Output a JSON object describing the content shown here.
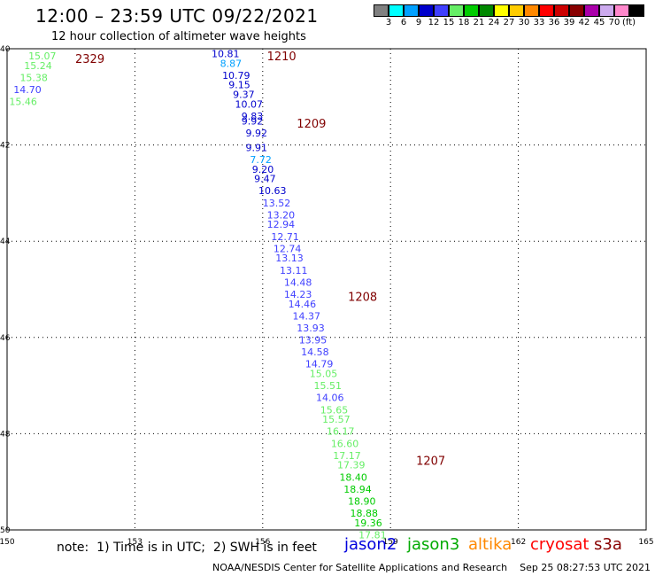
{
  "title": "12:00 – 23:59 UTC 09/22/2021",
  "subtitle": "12 hour collection of altimeter wave heights",
  "scale": {
    "colors": [
      "#808080",
      "#00ffff",
      "#00a0ff",
      "#0000cc",
      "#4040ff",
      "#66ee66",
      "#00cc00",
      "#008800",
      "#ffff00",
      "#ffcc00",
      "#ff8800",
      "#ff0000",
      "#cc0000",
      "#880000",
      "#aa00aa",
      "#ccaaee",
      "#ff88cc",
      "#000000"
    ],
    "labels": [
      "3",
      "6",
      "9",
      "12",
      "15",
      "18",
      "21",
      "24",
      "27",
      "30",
      "33",
      "36",
      "39",
      "42",
      "45",
      "70"
    ],
    "unit": "(ft)"
  },
  "axes": {
    "lat_ticks": [
      "40",
      "42",
      "44",
      "46",
      "48",
      "50"
    ],
    "lon_ticks": [
      "150",
      "153",
      "156",
      "159",
      "162",
      "165"
    ]
  },
  "chart_data": {
    "type": "scatter",
    "x_range": [
      150,
      165
    ],
    "y_range": [
      40,
      50
    ],
    "passes": [
      {
        "time": "2329",
        "lon": 151.6,
        "lat": 40.2,
        "color": "#800000"
      },
      {
        "time": "1210",
        "lon": 156.1,
        "lat": 40.15,
        "color": "#800000"
      },
      {
        "time": "1209",
        "lon": 156.8,
        "lat": 41.55,
        "color": "#800000"
      },
      {
        "time": "1208",
        "lon": 158.0,
        "lat": 45.15,
        "color": "#800000"
      },
      {
        "time": "1207",
        "lon": 159.6,
        "lat": 48.55,
        "color": "#800000"
      }
    ],
    "track_2329": [
      {
        "lon": 150.5,
        "lat": 40.15,
        "swh": "15.07"
      },
      {
        "lon": 150.4,
        "lat": 40.35,
        "swh": "15.24"
      },
      {
        "lon": 150.3,
        "lat": 40.6,
        "swh": "15.38"
      },
      {
        "lon": 150.15,
        "lat": 40.85,
        "swh": "14.70"
      },
      {
        "lon": 150.05,
        "lat": 41.1,
        "swh": "15.46"
      }
    ],
    "track_main": [
      {
        "lon": 154.8,
        "lat": 40.1,
        "swh": "10.81"
      },
      {
        "lon": 155.0,
        "lat": 40.3,
        "swh": "8.87"
      },
      {
        "lon": 155.05,
        "lat": 40.55,
        "swh": "10.79"
      },
      {
        "lon": 155.2,
        "lat": 40.75,
        "swh": "9.15"
      },
      {
        "lon": 155.3,
        "lat": 40.95,
        "swh": "9.37"
      },
      {
        "lon": 155.35,
        "lat": 41.15,
        "swh": "10.07"
      },
      {
        "lon": 155.5,
        "lat": 41.4,
        "swh": "9.83"
      },
      {
        "lon": 155.5,
        "lat": 41.5,
        "swh": "9.92"
      },
      {
        "lon": 155.6,
        "lat": 41.75,
        "swh": "9.92"
      },
      {
        "lon": 155.6,
        "lat": 42.05,
        "swh": "9.91"
      },
      {
        "lon": 155.7,
        "lat": 42.3,
        "swh": "7.72"
      },
      {
        "lon": 155.75,
        "lat": 42.5,
        "swh": "9.20"
      },
      {
        "lon": 155.8,
        "lat": 42.7,
        "swh": "9.47"
      },
      {
        "lon": 155.9,
        "lat": 42.95,
        "swh": "10.63"
      },
      {
        "lon": 156.0,
        "lat": 43.2,
        "swh": "13.52"
      },
      {
        "lon": 156.1,
        "lat": 43.45,
        "swh": "13.20"
      },
      {
        "lon": 156.1,
        "lat": 43.65,
        "swh": "12.94"
      },
      {
        "lon": 156.2,
        "lat": 43.9,
        "swh": "12.71"
      },
      {
        "lon": 156.25,
        "lat": 44.15,
        "swh": "12.74"
      },
      {
        "lon": 156.3,
        "lat": 44.35,
        "swh": "13.13"
      },
      {
        "lon": 156.4,
        "lat": 44.6,
        "swh": "13.11"
      },
      {
        "lon": 156.5,
        "lat": 44.85,
        "swh": "14.48"
      },
      {
        "lon": 156.5,
        "lat": 45.1,
        "swh": "14.23"
      },
      {
        "lon": 156.6,
        "lat": 45.3,
        "swh": "14.46"
      },
      {
        "lon": 156.7,
        "lat": 45.55,
        "swh": "14.37"
      },
      {
        "lon": 156.8,
        "lat": 45.8,
        "swh": "13.93"
      },
      {
        "lon": 156.85,
        "lat": 46.05,
        "swh": "13.95"
      },
      {
        "lon": 156.9,
        "lat": 46.3,
        "swh": "14.58"
      },
      {
        "lon": 157.0,
        "lat": 46.55,
        "swh": "14.79"
      },
      {
        "lon": 157.1,
        "lat": 46.75,
        "swh": "15.05"
      },
      {
        "lon": 157.2,
        "lat": 47.0,
        "swh": "15.51"
      },
      {
        "lon": 157.25,
        "lat": 47.25,
        "swh": "14.06"
      },
      {
        "lon": 157.35,
        "lat": 47.5,
        "swh": "15.65"
      },
      {
        "lon": 157.4,
        "lat": 47.7,
        "swh": "15.57"
      },
      {
        "lon": 157.5,
        "lat": 47.95,
        "swh": "16.17"
      },
      {
        "lon": 157.6,
        "lat": 48.2,
        "swh": "16.60"
      },
      {
        "lon": 157.65,
        "lat": 48.45,
        "swh": "17.17"
      },
      {
        "lon": 157.75,
        "lat": 48.65,
        "swh": "17.39"
      },
      {
        "lon": 157.8,
        "lat": 48.9,
        "swh": "18.40"
      },
      {
        "lon": 157.9,
        "lat": 49.15,
        "swh": "18.94"
      },
      {
        "lon": 158.0,
        "lat": 49.4,
        "swh": "18.90"
      },
      {
        "lon": 158.05,
        "lat": 49.65,
        "swh": "18.88"
      },
      {
        "lon": 158.15,
        "lat": 49.85,
        "swh": "19.36"
      },
      {
        "lon": 158.25,
        "lat": 50.1,
        "swh": "17.81"
      }
    ]
  },
  "note": "note:  1) Time is in UTC;  2) SWH is in feet",
  "satellites": [
    {
      "name": "jason2",
      "color": "#0000dd"
    },
    {
      "name": "jason3",
      "color": "#00aa00"
    },
    {
      "name": "altika",
      "color": "#ff8800"
    },
    {
      "name": "cryosat",
      "color": "#ff0000"
    },
    {
      "name": "s3a",
      "color": "#880000"
    }
  ],
  "footer": "NOAA/NESDIS Center for Satellite Applications and Research    Sep 25 08:27:53 UTC 2021"
}
